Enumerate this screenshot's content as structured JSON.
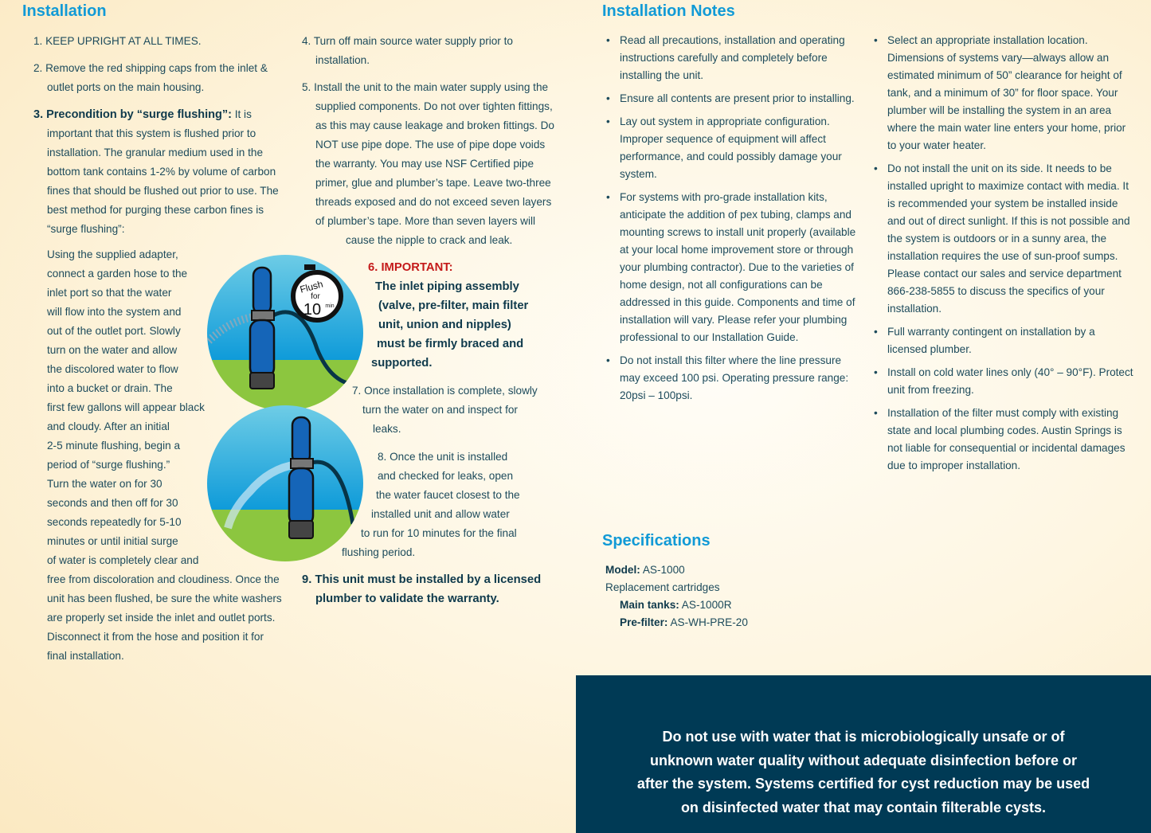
{
  "installation": {
    "title": "Installation",
    "step1": "1. KEEP UPRIGHT AT ALL TIMES.",
    "step2": "2. Remove the red shipping caps from the inlet & outlet ports on the main housing.",
    "step3_bold": "3. Precondition by “surge flushing”:",
    "step3_text": " It is important that this system is flushed prior to installation. The granular medium used in the bottom tank contains 1-2% by volume of carbon fines that should be flushed out prior to use. The best method for purging these carbon fines is “surge flushing”:",
    "step3_lines_a": [
      "Using the supplied adapter,",
      "connect a garden hose to the",
      "inlet port so that the water",
      "will flow into the system and",
      "out of the outlet port. Slowly",
      "turn on the water and allow",
      "the discolored water to flow",
      "into a bucket or drain. The",
      "first few gallons will appear black",
      "and cloudy. After an initial",
      "2-5 minute flushing, begin a",
      "period of “surge flushing.”",
      "Turn the water on for 30",
      "seconds and then off for 30",
      "seconds repeatedly for 5-10",
      "minutes or until initial surge",
      "of water is completely clear and"
    ],
    "step3_text_b": "free from discoloration and cloudiness. Once the unit has been flushed, be sure the white washers are properly set inside the inlet and outlet ports. Disconnect it from the hose and position it for final installation.",
    "step4": "4. Turn off main source water supply prior to installation.",
    "step5": "5. Install the unit to the main water supply using the supplied components. Do not over tighten fittings, as this may cause leakage and broken fittings. Do NOT use pipe dope. The use of pipe dope voids the warranty. You may use NSF Certified pipe primer, glue and plumber’s tape. Leave two-three threads exposed and do not exceed seven layers of plumber’s tape. More than seven layers will",
    "step5_end": "cause the nipple to crack and leak.",
    "step6_label": "6. IMPORTANT:",
    "step6_lines": [
      "The inlet piping assembly",
      "(valve, pre-filter, main filter",
      "unit, union and nipples)",
      "must be firmly braced and",
      "supported."
    ],
    "step7_lines": [
      "7. Once installation is complete, slowly",
      "turn the water on and inspect for",
      "leaks."
    ],
    "step8_lines": [
      "8. Once the unit is installed",
      "and checked for leaks, open",
      "the water faucet closest to the",
      "installed unit and allow water",
      "to run for 10 minutes for the final",
      "flushing period."
    ],
    "step9": "9. This unit must be installed by a licensed plumber to validate the warranty.",
    "timer": {
      "line1": "Flush",
      "line2": "for",
      "number": "10",
      "unit": "min"
    }
  },
  "notes": {
    "title": "Installation Notes",
    "col1": [
      "Read all precautions, installation and operating instructions carefully and completely before installing the unit.",
      "Ensure all contents are present prior to installing.",
      "Lay out system in appropriate configuration. Improper sequence of equipment will affect performance, and could possibly damage your system.",
      "For systems with pro-grade installation kits, anticipate the addition of pex tubing, clamps and mounting screws to install unit properly (available at your local home improvement store or through your plumbing contractor). Due to the varieties of home design, not all configurations can be addressed in this guide. Components and time of installation will vary. Please refer your plumbing professional to our Installation Guide.",
      "Do not install this filter where the line pressure may exceed 100 psi. Operating pressure range: 20psi – 100psi."
    ],
    "col2": [
      "Select an appropriate installation location. Dimensions of systems vary—always allow an estimated minimum of 50” clearance for height of tank, and a minimum of 30” for floor space. Your plumber will be installing the system in an area where the main water line enters your home, prior to your water heater.",
      "Do not install the unit on its side. It needs to be installed upright to maximize contact with media. It is recommended your system be installed inside and out of direct sunlight. If this is not possible and the system is outdoors or in a sunny area, the installation requires the use of sun-proof sumps.  Please contact our sales and service department 866-238-5855 to discuss the specifics of your installation.",
      "Full warranty contingent on installation by a licensed plumber.",
      "Install on cold water lines only (40° – 90°F). Protect unit from freezing.",
      "Installation of the filter must comply with existing state and local plumbing codes. Austin Springs is not liable for consequential or incidental damages due to  improper installation."
    ]
  },
  "specs": {
    "title": "Specifications",
    "model_label": "Model:",
    "model_value": " AS-1000",
    "replacement": "Replacement cartridges",
    "main_label": "Main tanks:",
    "main_value": " AS-1000R",
    "pre_label": "Pre-filter:",
    "pre_value": " AS-WH-PRE-20"
  },
  "warning": [
    "Do not use with water that is microbiologically unsafe or of",
    "unknown water quality without adequate disinfection before or",
    "after the system. Systems certified for cyst reduction may be used",
    "on disinfected water that may contain filterable cysts."
  ],
  "colors": {
    "heading": "#119ad6",
    "text": "#1d4b5c",
    "important": "#c41a1a",
    "banner": "#003a55"
  }
}
